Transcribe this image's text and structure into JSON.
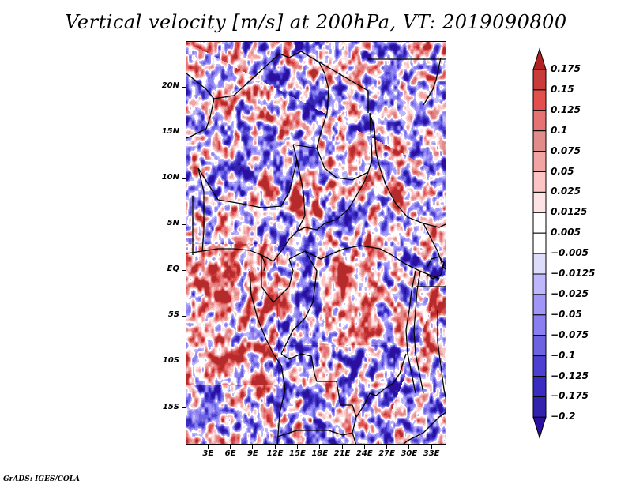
{
  "title": "Vertical velocity [m/s] at 200hPa, VT: 2019090800",
  "footer": "GrADS: IGES/COLA",
  "map": {
    "variable": "Vertical velocity",
    "units": "m/s",
    "level": "200hPa",
    "valid_time": "2019090800",
    "region": "Central Africa",
    "lon_range_deg": [
      0,
      35
    ],
    "lat_range_deg": [
      -19,
      25
    ],
    "lat_ticks": [
      {
        "value": 20,
        "label": "20N"
      },
      {
        "value": 15,
        "label": "15N"
      },
      {
        "value": 10,
        "label": "10N"
      },
      {
        "value": 5,
        "label": "5N"
      },
      {
        "value": 0,
        "label": "EQ"
      },
      {
        "value": -5,
        "label": "5S"
      },
      {
        "value": -10,
        "label": "10S"
      },
      {
        "value": -15,
        "label": "15S"
      }
    ],
    "lon_ticks": [
      {
        "value": 3,
        "label": "3E"
      },
      {
        "value": 6,
        "label": "6E"
      },
      {
        "value": 9,
        "label": "9E"
      },
      {
        "value": 12,
        "label": "12E"
      },
      {
        "value": 15,
        "label": "15E"
      },
      {
        "value": 18,
        "label": "18E"
      },
      {
        "value": 21,
        "label": "21E"
      },
      {
        "value": 24,
        "label": "24E"
      },
      {
        "value": 27,
        "label": "27E"
      },
      {
        "value": 30,
        "label": "30E"
      },
      {
        "value": 33,
        "label": "33E"
      }
    ]
  },
  "colorbar": {
    "top_arrow_color": "#b22222",
    "bottom_arrow_color": "#2a0fa0",
    "levels": [
      {
        "label": "0.175",
        "color": "#b52a2a"
      },
      {
        "label": "0.15",
        "color": "#c93a3a"
      },
      {
        "label": "0.125",
        "color": "#e24f4f"
      },
      {
        "label": "0.1",
        "color": "#e67373"
      },
      {
        "label": "0.075",
        "color": "#e28b8b"
      },
      {
        "label": "0.05",
        "color": "#f2a3a3"
      },
      {
        "label": "0.025",
        "color": "#fbc5c5"
      },
      {
        "label": "0.0125",
        "color": "#fde3e3"
      },
      {
        "label": "0.005",
        "color": "#ffffff"
      },
      {
        "label": "-0.005",
        "color": "#dedcfb"
      },
      {
        "label": "-0.0125",
        "color": "#bfb7fb"
      },
      {
        "label": "-0.025",
        "color": "#a196f7"
      },
      {
        "label": "-0.05",
        "color": "#8a7ff0"
      },
      {
        "label": "-0.075",
        "color": "#6d62e0"
      },
      {
        "label": "-0.1",
        "color": "#4c3fd2"
      },
      {
        "label": "-0.125",
        "color": "#3a2cc0"
      },
      {
        "label": "-0.175",
        "color": "#3123ad"
      },
      {
        "label": "-0.2",
        "color": "#2a0fa0"
      }
    ]
  }
}
